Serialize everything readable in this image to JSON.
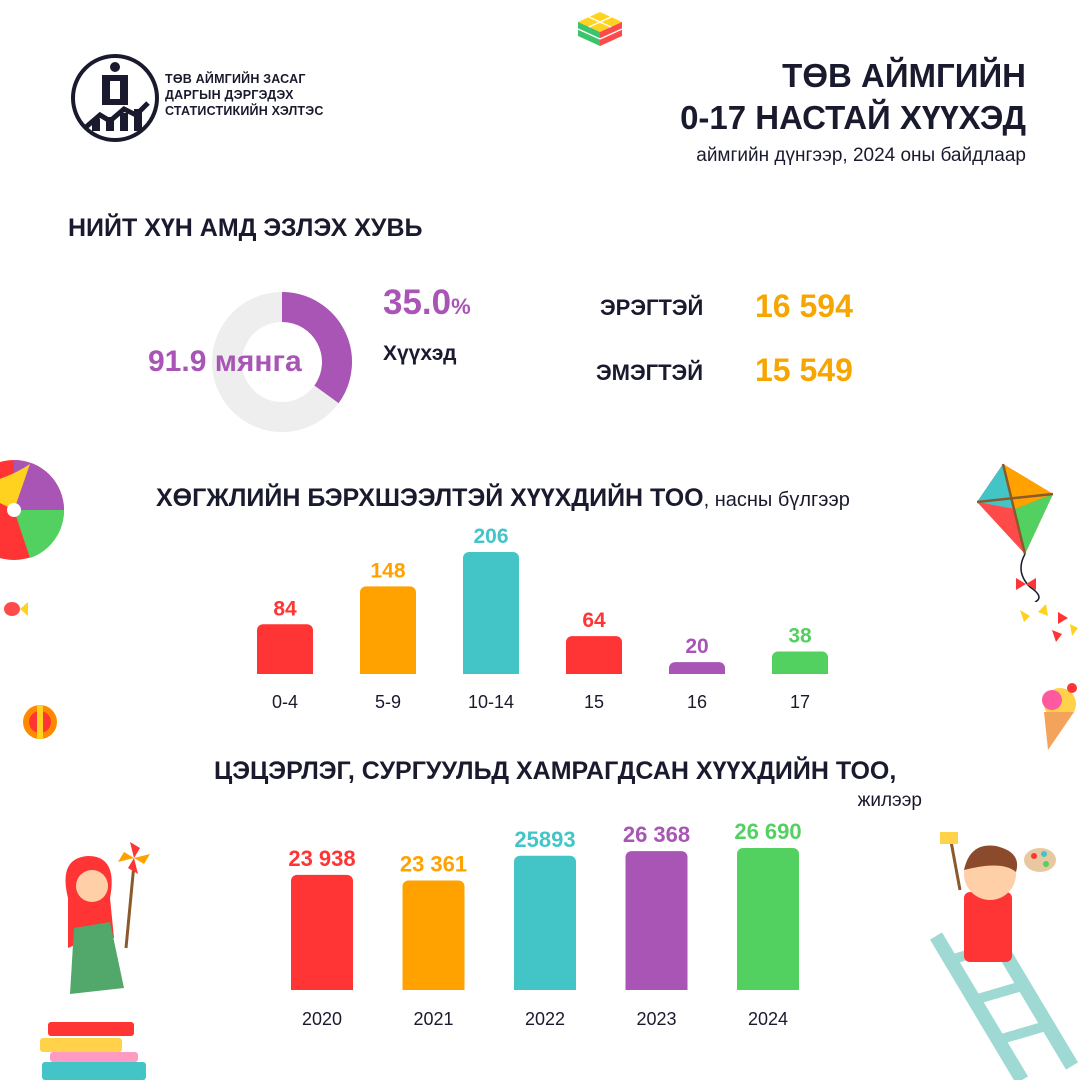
{
  "colors": {
    "red": "#ff3434",
    "orange": "#ffa200",
    "teal": "#43c5c8",
    "purple": "#a855b5",
    "green": "#52d160",
    "gold": "#f7a500",
    "navy": "#1a1a2e",
    "donut_bg": "#eeeeee"
  },
  "logo": {
    "icon": "mongolian-soyombo-emblem-icon",
    "lines": [
      "ТӨВ АЙМГИЙН ЗАСАГ",
      "ДАРГЫН ДЭРГЭДЭХ",
      "СТАТИСТИКИЙН ХЭЛТЭС"
    ]
  },
  "header": {
    "title_line1": "ТӨВ АЙМГИЙН",
    "title_line2": "0-17 НАСТАЙ ХҮҮХЭД",
    "subtitle": "аймгийн дүнгээр, 2024 оны байдлаар"
  },
  "share": {
    "heading": "НИЙТ ХҮН АМД ЭЗЛЭХ ХУВЬ",
    "donut_label": "91.9 мянга",
    "percent_value": "35.0",
    "percent_sign": "%",
    "percent_label": "Хүүхэд"
  },
  "gender": {
    "male_label": "ЭРЭГТЭЙ",
    "male_value": "16 594",
    "female_label": "ЭМЭГТЭЙ",
    "female_value": "15 549"
  },
  "disability_section": {
    "heading": "ХӨГЖЛИЙН БЭРХШЭЭЛТЭЙ ХҮҮХДИЙН ТОО",
    "heading_suffix": ", насны бүлгээр"
  },
  "enrollment_section": {
    "heading": "ЦЭЦЭРЛЭГ, СУРГУУЛЬД ХАМРАГДСАН ХҮҮХДИЙН ТОО",
    "heading_suffix": ",",
    "subheading": "жилээр"
  },
  "chart_data": [
    {
      "type": "pie",
      "categories": [
        "Хүүхэд",
        ""
      ],
      "values": [
        35.0,
        65.0
      ]
    },
    {
      "type": "bar",
      "categories": [
        "0-4",
        "5-9",
        "10-14",
        "15",
        "16",
        "17"
      ],
      "values": [
        84,
        148,
        206,
        64,
        20,
        38
      ],
      "value_labels": [
        "84",
        "148",
        "206",
        "64",
        "20",
        "38"
      ],
      "colors": [
        "#ff3434",
        "#ffa200",
        "#43c5c8",
        "#ff3434",
        "#a855b5",
        "#52d160"
      ]
    },
    {
      "type": "bar",
      "categories": [
        "2020",
        "2021",
        "2022",
        "2023",
        "2024"
      ],
      "values": [
        23938,
        23361,
        25893,
        26368,
        26690
      ],
      "value_labels": [
        "23 938",
        "23 361",
        "25893",
        "26 368",
        "26 690"
      ],
      "colors": [
        "#ff3434",
        "#ffa200",
        "#43c5c8",
        "#a855b5",
        "#52d160"
      ]
    }
  ]
}
